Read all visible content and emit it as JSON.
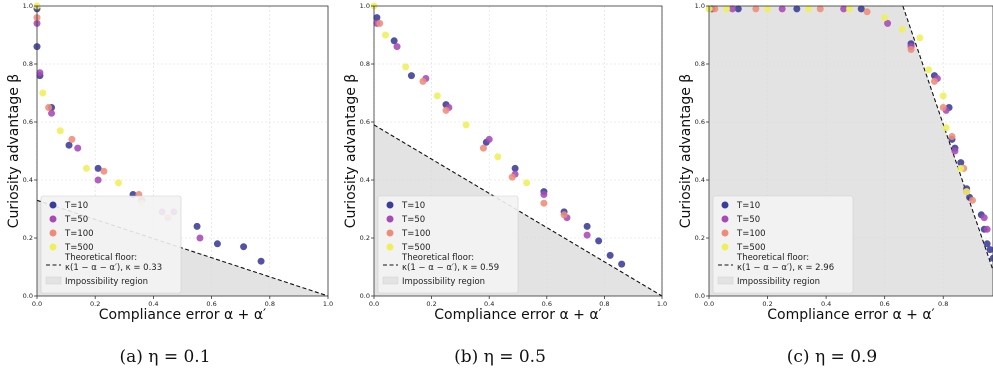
{
  "chart_data": [
    {
      "type": "scatter",
      "caption": "(a) η = 0.1",
      "xlabel": "Compliance error α + α′",
      "ylabel": "Curiosity advantage β",
      "xlim": [
        0,
        1.0
      ],
      "ylim": [
        0,
        1.0
      ],
      "xticks": [
        "0.0",
        "0.2",
        "0.4",
        "0.6",
        "0.8",
        "1.0"
      ],
      "yticks": [
        "0.0",
        "0.2",
        "0.4",
        "0.6",
        "0.8",
        "1.0"
      ],
      "grid": true,
      "legend_position": "lower-left",
      "floor_label_line1": "Theoretical floor:",
      "floor_label_line2": "κ(1 − α − α′), κ = 0.33",
      "kappa": 0.33,
      "impossibility_label": "Impossibility region",
      "series": [
        {
          "name": "T=10",
          "color": "#3b3b98",
          "points": [
            [
              0.0,
              0.99
            ],
            [
              0.0,
              0.86
            ],
            [
              0.01,
              0.76
            ],
            [
              0.05,
              0.65
            ],
            [
              0.11,
              0.52
            ],
            [
              0.21,
              0.44
            ],
            [
              0.33,
              0.35
            ],
            [
              0.55,
              0.24
            ],
            [
              0.62,
              0.18
            ],
            [
              0.71,
              0.17
            ],
            [
              0.77,
              0.12
            ]
          ]
        },
        {
          "name": "T=50",
          "color": "#a64ab5",
          "points": [
            [
              0.0,
              0.94
            ],
            [
              0.01,
              0.77
            ],
            [
              0.05,
              0.63
            ],
            [
              0.14,
              0.51
            ],
            [
              0.21,
              0.4
            ],
            [
              0.36,
              0.33
            ],
            [
              0.43,
              0.29
            ],
            [
              0.47,
              0.29
            ],
            [
              0.56,
              0.2
            ]
          ]
        },
        {
          "name": "T=100",
          "color": "#ee8c7a",
          "points": [
            [
              0.0,
              0.96
            ],
            [
              0.04,
              0.65
            ],
            [
              0.12,
              0.54
            ],
            [
              0.23,
              0.43
            ],
            [
              0.35,
              0.35
            ],
            [
              0.45,
              0.27
            ]
          ]
        },
        {
          "name": "T=500",
          "color": "#eef05a",
          "points": [
            [
              0.0,
              1.0
            ],
            [
              0.02,
              0.7
            ],
            [
              0.08,
              0.57
            ],
            [
              0.17,
              0.44
            ],
            [
              0.28,
              0.39
            ],
            [
              0.36,
              0.32
            ]
          ]
        }
      ]
    },
    {
      "type": "scatter",
      "caption": "(b) η = 0.5",
      "xlabel": "Compliance error α + α′",
      "ylabel": "Curiosity advantage β",
      "xlim": [
        0,
        1.0
      ],
      "ylim": [
        0,
        1.0
      ],
      "xticks": [
        "0.0",
        "0.2",
        "0.4",
        "0.6",
        "0.8",
        "1.0"
      ],
      "yticks": [
        "0.0",
        "0.2",
        "0.4",
        "0.6",
        "0.8",
        "1.0"
      ],
      "grid": true,
      "legend_position": "lower-left",
      "floor_label_line1": "Theoretical floor:",
      "floor_label_line2": "κ(1 − α − α′), κ = 0.59",
      "kappa": 0.59,
      "impossibility_label": "Impossibility region",
      "series": [
        {
          "name": "T=10",
          "color": "#3b3b98",
          "points": [
            [
              0.01,
              0.96
            ],
            [
              0.07,
              0.88
            ],
            [
              0.13,
              0.76
            ],
            [
              0.25,
              0.66
            ],
            [
              0.39,
              0.53
            ],
            [
              0.49,
              0.44
            ],
            [
              0.59,
              0.36
            ],
            [
              0.66,
              0.29
            ],
            [
              0.74,
              0.24
            ],
            [
              0.78,
              0.19
            ],
            [
              0.82,
              0.14
            ],
            [
              0.86,
              0.11
            ]
          ]
        },
        {
          "name": "T=50",
          "color": "#a64ab5",
          "points": [
            [
              0.01,
              0.94
            ],
            [
              0.08,
              0.86
            ],
            [
              0.18,
              0.75
            ],
            [
              0.26,
              0.65
            ],
            [
              0.4,
              0.54
            ],
            [
              0.49,
              0.42
            ],
            [
              0.59,
              0.35
            ],
            [
              0.67,
              0.27
            ],
            [
              0.74,
              0.21
            ]
          ]
        },
        {
          "name": "T=100",
          "color": "#ee8c7a",
          "points": [
            [
              0.02,
              0.94
            ],
            [
              0.17,
              0.74
            ],
            [
              0.25,
              0.64
            ],
            [
              0.38,
              0.51
            ],
            [
              0.48,
              0.41
            ],
            [
              0.59,
              0.32
            ],
            [
              0.66,
              0.28
            ]
          ]
        },
        {
          "name": "T=500",
          "color": "#eef05a",
          "points": [
            [
              0.0,
              1.0
            ],
            [
              0.04,
              0.9
            ],
            [
              0.11,
              0.79
            ],
            [
              0.22,
              0.69
            ],
            [
              0.32,
              0.59
            ],
            [
              0.43,
              0.48
            ],
            [
              0.53,
              0.39
            ]
          ]
        }
      ]
    },
    {
      "type": "scatter",
      "caption": "(c) η = 0.9",
      "xlabel": "Compliance error α + α′",
      "ylabel": "Curiosity advantage β",
      "xlim": [
        0,
        0.97
      ],
      "ylim": [
        0,
        1.0
      ],
      "xticks": [
        "0.0",
        "0.2",
        "0.4",
        "0.6",
        "0.8"
      ],
      "yticks": [
        "0.0",
        "0.2",
        "0.4",
        "0.6",
        "0.8",
        "1.0"
      ],
      "grid": true,
      "legend_position": "lower-left",
      "floor_label_line1": "Theoretical floor:",
      "floor_label_line2": "κ(1 − α − α′), κ = 2.96",
      "kappa": 2.96,
      "impossibility_label": "Impossibility region",
      "series": [
        {
          "name": "T=10",
          "color": "#3b3b98",
          "points": [
            [
              0.01,
              0.99
            ],
            [
              0.1,
              0.99
            ],
            [
              0.3,
              0.99
            ],
            [
              0.52,
              0.99
            ],
            [
              0.69,
              0.87
            ],
            [
              0.77,
              0.76
            ],
            [
              0.82,
              0.65
            ],
            [
              0.83,
              0.54
            ],
            [
              0.84,
              0.51
            ],
            [
              0.86,
              0.46
            ],
            [
              0.88,
              0.37
            ],
            [
              0.89,
              0.34
            ],
            [
              0.93,
              0.28
            ],
            [
              0.94,
              0.23
            ],
            [
              0.95,
              0.18
            ],
            [
              0.96,
              0.16
            ],
            [
              0.97,
              0.13
            ]
          ]
        },
        {
          "name": "T=50",
          "color": "#a64ab5",
          "points": [
            [
              0.08,
              0.99
            ],
            [
              0.25,
              0.99
            ],
            [
              0.46,
              0.99
            ],
            [
              0.61,
              0.94
            ],
            [
              0.69,
              0.86
            ],
            [
              0.78,
              0.75
            ],
            [
              0.81,
              0.64
            ],
            [
              0.84,
              0.5
            ],
            [
              0.88,
              0.36
            ],
            [
              0.94,
              0.27
            ],
            [
              0.95,
              0.23
            ]
          ]
        },
        {
          "name": "T=100",
          "color": "#ee8c7a",
          "points": [
            [
              0.02,
              0.99
            ],
            [
              0.16,
              0.99
            ],
            [
              0.38,
              0.99
            ],
            [
              0.54,
              0.98
            ],
            [
              0.69,
              0.85
            ],
            [
              0.77,
              0.74
            ],
            [
              0.8,
              0.65
            ],
            [
              0.83,
              0.55
            ],
            [
              0.87,
              0.44
            ],
            [
              0.9,
              0.33
            ]
          ]
        },
        {
          "name": "T=500",
          "color": "#eef05a",
          "points": [
            [
              0.0,
              0.99
            ],
            [
              0.06,
              0.99
            ],
            [
              0.2,
              0.99
            ],
            [
              0.34,
              0.99
            ],
            [
              0.48,
              0.99
            ],
            [
              0.6,
              0.96
            ],
            [
              0.66,
              0.92
            ],
            [
              0.72,
              0.89
            ],
            [
              0.75,
              0.78
            ],
            [
              0.8,
              0.69
            ],
            [
              0.81,
              0.58
            ],
            [
              0.86,
              0.44
            ],
            [
              0.88,
              0.36
            ]
          ]
        }
      ]
    }
  ]
}
